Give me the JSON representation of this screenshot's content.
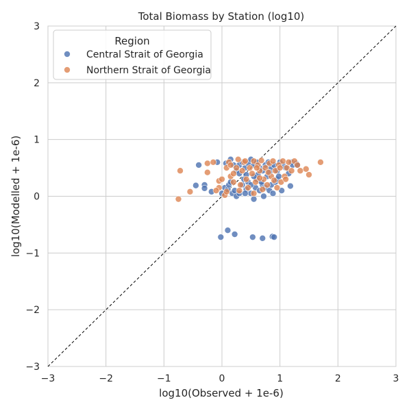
{
  "chart_data": {
    "type": "scatter",
    "title": "Total Biomass by Station (log10)",
    "xlabel": "log10(Observed + 1e-6)",
    "ylabel": "log10(Modelled + 1e-6)",
    "xlim": [
      -3,
      3
    ],
    "ylim": [
      -3,
      3
    ],
    "xticks": [
      -3,
      -2,
      -1,
      0,
      1,
      2,
      3
    ],
    "yticks": [
      -3,
      -2,
      -1,
      0,
      1,
      2,
      3
    ],
    "xtick_labels": [
      "−3",
      "−2",
      "−1",
      "0",
      "1",
      "2",
      "3"
    ],
    "ytick_labels": [
      "−3",
      "−2",
      "−1",
      "0",
      "1",
      "2",
      "3"
    ],
    "grid": true,
    "reference_line": "y = x (dashed)",
    "legend": {
      "title": "Region",
      "placement": "top-left"
    },
    "series": [
      {
        "name": "Central Strait of Georgia",
        "color": "#4c72b0",
        "points": [
          [
            -0.45,
            0.19
          ],
          [
            -0.3,
            0.2
          ],
          [
            -0.3,
            0.14
          ],
          [
            -0.18,
            0.08
          ],
          [
            -0.4,
            0.55
          ],
          [
            -0.08,
            0.6
          ],
          [
            0.07,
            0.58
          ],
          [
            0.0,
            0.05
          ],
          [
            0.05,
            0.15
          ],
          [
            0.1,
            0.12
          ],
          [
            0.12,
            0.2
          ],
          [
            0.15,
            0.25
          ],
          [
            0.18,
            0.05
          ],
          [
            0.22,
            0.1
          ],
          [
            0.25,
            0.0
          ],
          [
            0.3,
            0.05
          ],
          [
            0.35,
            0.2
          ],
          [
            0.38,
            0.3
          ],
          [
            0.42,
            0.12
          ],
          [
            0.45,
            0.25
          ],
          [
            0.5,
            0.05
          ],
          [
            0.55,
            -0.05
          ],
          [
            0.58,
            0.15
          ],
          [
            0.6,
            0.3
          ],
          [
            0.65,
            0.1
          ],
          [
            0.7,
            0.2
          ],
          [
            0.72,
            0.0
          ],
          [
            0.75,
            0.15
          ],
          [
            0.78,
            0.35
          ],
          [
            0.82,
            0.1
          ],
          [
            0.85,
            0.2
          ],
          [
            0.88,
            0.05
          ],
          [
            0.92,
            0.25
          ],
          [
            0.95,
            0.3
          ],
          [
            1.05,
            0.55
          ],
          [
            1.1,
            0.5
          ],
          [
            1.15,
            0.4
          ],
          [
            1.2,
            0.6
          ],
          [
            1.22,
            0.55
          ],
          [
            1.28,
            0.58
          ],
          [
            1.3,
            0.55
          ],
          [
            0.3,
            0.55
          ],
          [
            0.35,
            0.6
          ],
          [
            0.4,
            0.5
          ],
          [
            0.45,
            0.58
          ],
          [
            0.5,
            0.65
          ],
          [
            0.55,
            0.55
          ],
          [
            0.6,
            0.6
          ],
          [
            0.65,
            0.5
          ],
          [
            0.7,
            0.45
          ],
          [
            0.75,
            0.55
          ],
          [
            0.8,
            0.6
          ],
          [
            0.85,
            0.5
          ],
          [
            0.9,
            0.55
          ],
          [
            0.95,
            0.45
          ],
          [
            1.0,
            0.6
          ],
          [
            0.25,
            0.45
          ],
          [
            0.2,
            0.55
          ],
          [
            0.42,
            0.38
          ],
          [
            0.62,
            0.38
          ],
          [
            0.82,
            0.42
          ],
          [
            0.98,
            0.35
          ],
          [
            1.18,
            0.18
          ],
          [
            1.03,
            0.1
          ],
          [
            0.3,
            0.4
          ],
          [
            0.55,
            0.35
          ],
          [
            0.68,
            0.25
          ],
          [
            0.15,
            0.65
          ],
          [
            0.5,
            0.2
          ],
          [
            0.4,
            0.05
          ],
          [
            0.1,
            -0.6
          ],
          [
            0.22,
            -0.67
          ],
          [
            -0.02,
            -0.72
          ],
          [
            0.53,
            -0.72
          ],
          [
            0.7,
            -0.74
          ],
          [
            0.87,
            -0.71
          ],
          [
            0.9,
            -0.72
          ]
        ]
      },
      {
        "name": "Northern Strait of Georgia",
        "color": "#dd8452",
        "points": [
          [
            -0.72,
            0.45
          ],
          [
            -0.75,
            -0.05
          ],
          [
            -0.55,
            0.08
          ],
          [
            -0.25,
            0.42
          ],
          [
            -0.25,
            0.58
          ],
          [
            -0.15,
            0.6
          ],
          [
            -0.05,
            0.27
          ],
          [
            -0.05,
            0.15
          ],
          [
            0.0,
            0.3
          ],
          [
            0.05,
            0.02
          ],
          [
            0.08,
            0.5
          ],
          [
            0.12,
            0.6
          ],
          [
            0.15,
            0.35
          ],
          [
            0.2,
            0.25
          ],
          [
            0.25,
            0.5
          ],
          [
            0.28,
            0.65
          ],
          [
            0.32,
            0.2
          ],
          [
            0.35,
            0.45
          ],
          [
            0.38,
            0.6
          ],
          [
            0.42,
            0.3
          ],
          [
            0.48,
            0.5
          ],
          [
            0.52,
            0.4
          ],
          [
            0.55,
            0.62
          ],
          [
            0.58,
            0.25
          ],
          [
            0.62,
            0.55
          ],
          [
            0.65,
            0.45
          ],
          [
            0.68,
            0.63
          ],
          [
            0.72,
            0.3
          ],
          [
            0.75,
            0.5
          ],
          [
            0.78,
            0.2
          ],
          [
            0.82,
            0.58
          ],
          [
            0.85,
            0.35
          ],
          [
            0.88,
            0.62
          ],
          [
            0.92,
            0.45
          ],
          [
            0.95,
            0.15
          ],
          [
            0.98,
            0.55
          ],
          [
            1.02,
            0.25
          ],
          [
            1.05,
            0.62
          ],
          [
            1.08,
            0.35
          ],
          [
            1.12,
            0.5
          ],
          [
            1.15,
            0.6
          ],
          [
            1.2,
            0.45
          ],
          [
            1.25,
            0.62
          ],
          [
            1.35,
            0.45
          ],
          [
            1.45,
            0.48
          ],
          [
            1.5,
            0.38
          ],
          [
            1.7,
            0.6
          ],
          [
            1.1,
            0.3
          ],
          [
            0.3,
            0.1
          ],
          [
            0.45,
            0.15
          ],
          [
            0.6,
            0.5
          ],
          [
            0.7,
            0.12
          ],
          [
            0.15,
            0.55
          ],
          [
            0.4,
            0.62
          ],
          [
            0.9,
            0.28
          ],
          [
            1.0,
            0.5
          ],
          [
            0.08,
            0.08
          ],
          [
            -0.1,
            0.1
          ],
          [
            0.2,
            0.4
          ],
          [
            0.55,
            0.05
          ],
          [
            0.65,
            0.32
          ],
          [
            0.8,
            0.42
          ],
          [
            1.3,
            0.55
          ]
        ]
      }
    ]
  }
}
